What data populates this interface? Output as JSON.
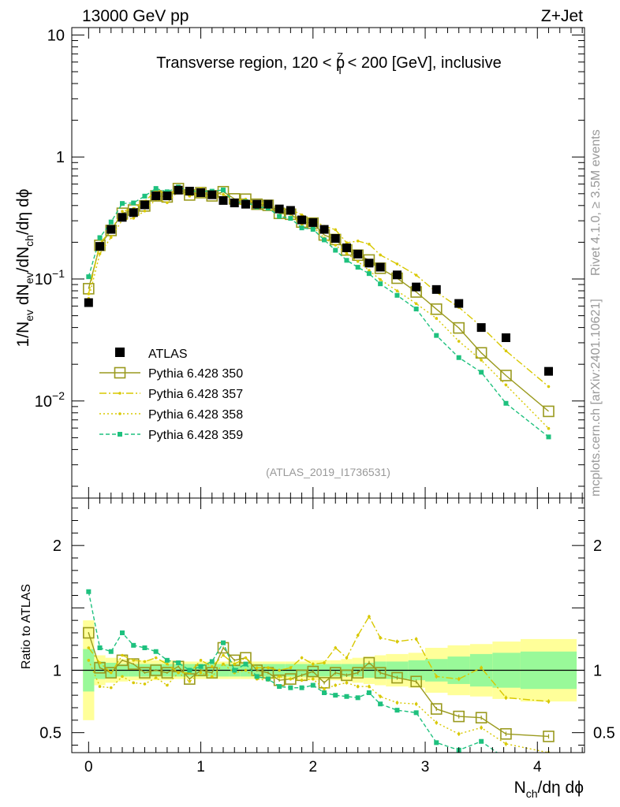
{
  "header": {
    "energy": "13000 GeV pp",
    "process": "Z+Jet"
  },
  "side_labels": {
    "rivet": "Rivet 4.1.0, ≥ 3.5M events",
    "source": "mcplots.cern.ch [arXiv:2401.10621]"
  },
  "chart_data": {
    "type": "line",
    "title_parts": {
      "prefix": "Transverse region, 120 < p",
      "sup": "Z",
      "sub": "T",
      "suffix": " < 200 [GeV], inclusive"
    },
    "analysis_label": "(ATLAS_2019_I1736531)",
    "ylabel_parts": [
      "1/N",
      "ev",
      " dN",
      "ev",
      "/dN",
      "ch",
      "/dη dϕ"
    ],
    "xlabel_parts": [
      "N",
      "ch",
      "/dη dϕ"
    ],
    "ratio_ylabel": "Ratio to ATLAS",
    "xlim": [
      -0.15,
      4.42
    ],
    "ylim": [
      0.0016,
      11.5
    ],
    "ratio_ylim": [
      0.34,
      2.38
    ],
    "x_ticks": [
      "0",
      "1",
      "2",
      "3",
      "4"
    ],
    "x_tick_values": [
      0,
      1,
      2,
      3,
      4
    ],
    "y_ticks": [
      {
        "value": 10,
        "base": "10",
        "exp": ""
      },
      {
        "value": 1,
        "base": "1",
        "exp": ""
      },
      {
        "value": 0.1,
        "base": "10",
        "exp": "−1"
      },
      {
        "value": 0.01,
        "base": "10",
        "exp": "−2"
      }
    ],
    "ratio_ticks": [
      {
        "value": 2,
        "label": "2"
      },
      {
        "value": 1,
        "label": "1"
      },
      {
        "value": 0.5,
        "label": "0.5"
      }
    ],
    "x": [
      0.0,
      0.1,
      0.2,
      0.3,
      0.4,
      0.5,
      0.6,
      0.7,
      0.8,
      0.9,
      1.0,
      1.1,
      1.2,
      1.3,
      1.4,
      1.5,
      1.6,
      1.7,
      1.8,
      1.9,
      2.0,
      2.1,
      2.2,
      2.3,
      2.4,
      2.5,
      2.6,
      2.75,
      2.92,
      3.1,
      3.3,
      3.5,
      3.72,
      4.1
    ],
    "data": {
      "name": "ATLAS",
      "color": "#000000",
      "values": [
        0.064,
        0.185,
        0.255,
        0.32,
        0.35,
        0.405,
        0.48,
        0.48,
        0.535,
        0.525,
        0.51,
        0.49,
        0.44,
        0.42,
        0.41,
        0.41,
        0.41,
        0.375,
        0.365,
        0.305,
        0.29,
        0.255,
        0.215,
        0.18,
        0.16,
        0.135,
        0.125,
        0.108,
        0.086,
        0.082,
        0.063,
        0.04,
        0.033,
        0.0175
      ]
    },
    "band": {
      "x": [
        0.0,
        0.1,
        0.2,
        0.3,
        0.4,
        0.5,
        0.6,
        0.7,
        0.8,
        0.9,
        1.0,
        1.1,
        1.2,
        1.3,
        1.4,
        1.5,
        1.6,
        1.7,
        1.8,
        1.9,
        2.0,
        2.1,
        2.2,
        2.3,
        2.4,
        2.5,
        2.6,
        2.75,
        2.92,
        3.1,
        3.3,
        3.5,
        3.72,
        4.1
      ],
      "edges": [
        -0.05,
        0.05,
        0.15,
        0.25,
        0.35,
        0.45,
        0.55,
        0.65,
        0.75,
        0.85,
        0.95,
        1.05,
        1.15,
        1.25,
        1.35,
        1.45,
        1.55,
        1.65,
        1.75,
        1.85,
        1.95,
        2.05,
        2.15,
        2.25,
        2.35,
        2.45,
        2.55,
        2.65,
        2.85,
        3.0,
        3.2,
        3.4,
        3.6,
        3.85,
        4.35
      ],
      "inner": [
        0.17,
        0.07,
        0.06,
        0.05,
        0.05,
        0.05,
        0.05,
        0.05,
        0.05,
        0.05,
        0.05,
        0.05,
        0.05,
        0.05,
        0.05,
        0.05,
        0.05,
        0.05,
        0.05,
        0.05,
        0.05,
        0.05,
        0.05,
        0.05,
        0.05,
        0.06,
        0.07,
        0.07,
        0.08,
        0.09,
        0.11,
        0.13,
        0.14,
        0.15
      ],
      "outer": [
        0.4,
        0.12,
        0.1,
        0.09,
        0.08,
        0.08,
        0.08,
        0.08,
        0.07,
        0.07,
        0.07,
        0.07,
        0.07,
        0.07,
        0.07,
        0.07,
        0.07,
        0.07,
        0.07,
        0.07,
        0.08,
        0.08,
        0.08,
        0.09,
        0.1,
        0.11,
        0.12,
        0.13,
        0.14,
        0.18,
        0.2,
        0.21,
        0.23,
        0.25
      ],
      "inner_color": "#99f999",
      "outer_color": "#ffff99"
    },
    "series": [
      {
        "name": "Pythia 6.428 350",
        "color": "#9a9a1e",
        "dash": "",
        "marker": "open-square",
        "ratio": [
          1.3,
          1.02,
          0.98,
          1.08,
          1.05,
          0.98,
          1.0,
          0.98,
          1.03,
          0.93,
          1.0,
          0.98,
          1.18,
          1.08,
          1.1,
          1.0,
          0.98,
          0.92,
          0.93,
          0.96,
          0.99,
          0.9,
          0.98,
          0.96,
          0.98,
          1.06,
          0.98,
          0.94,
          0.91,
          0.69,
          0.63,
          0.62,
          0.49,
          0.47
        ]
      },
      {
        "name": "Pythia 6.428 357",
        "color": "#d8c800",
        "dash": "9,3,2,3",
        "marker": "small",
        "ratio": [
          1.18,
          1.06,
          0.98,
          1.12,
          1.08,
          1.07,
          1.1,
          1.05,
          0.98,
          0.98,
          1.08,
          1.03,
          1.12,
          1.05,
          1.1,
          1.02,
          1.02,
          1.0,
          1.02,
          1.1,
          1.05,
          1.06,
          1.18,
          1.1,
          1.28,
          1.43,
          1.26,
          1.23,
          1.25,
          0.95,
          0.93,
          1.02,
          0.78,
          0.75
        ]
      },
      {
        "name": "Pythia 6.428 358",
        "color": "#d8c800",
        "dash": "2,3",
        "marker": "small",
        "ratio": [
          1.08,
          0.87,
          0.86,
          0.95,
          0.9,
          0.89,
          0.94,
          0.88,
          0.98,
          0.91,
          0.98,
          0.95,
          1.05,
          0.98,
          1.0,
          0.93,
          0.92,
          0.95,
          0.93,
          0.92,
          0.93,
          0.85,
          0.88,
          0.9,
          0.87,
          0.87,
          0.79,
          0.74,
          0.73,
          0.58,
          0.49,
          0.54,
          0.41,
          0.34
        ]
      },
      {
        "name": "Pythia 6.428 359",
        "color": "#1ec17e",
        "dash": "5,3",
        "marker": "filled-square",
        "ratio": [
          1.63,
          1.18,
          1.15,
          1.3,
          1.2,
          1.18,
          1.15,
          1.08,
          1.06,
          1.0,
          1.03,
          1.07,
          1.22,
          1.0,
          1.05,
          0.95,
          0.93,
          0.87,
          0.86,
          0.86,
          0.88,
          0.82,
          0.8,
          0.79,
          0.78,
          0.82,
          0.73,
          0.68,
          0.66,
          0.42,
          0.36,
          0.43,
          0.29,
          0.29
        ]
      }
    ]
  }
}
